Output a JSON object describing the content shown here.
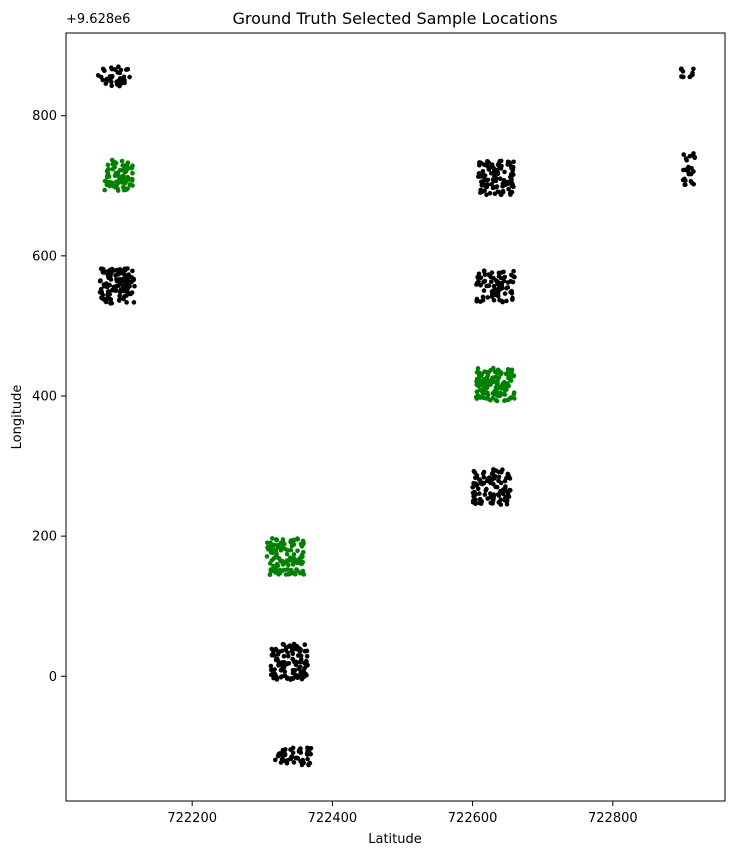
{
  "chart_data": {
    "type": "scatter",
    "title": "Ground Truth Selected Sample Locations",
    "xlabel": "Latitude",
    "ylabel": "Longitude",
    "offset_label": "+9.628e6",
    "xlim": [
      722020,
      722960
    ],
    "ylim": [
      -178,
      918
    ],
    "x_ticks": [
      {
        "value": 722200,
        "label": "722200"
      },
      {
        "value": 722400,
        "label": "722400"
      },
      {
        "value": 722600,
        "label": "722600"
      },
      {
        "value": 722800,
        "label": "722800"
      }
    ],
    "y_ticks": [
      {
        "value": 0,
        "label": "0"
      },
      {
        "value": 200,
        "label": "200"
      },
      {
        "value": 400,
        "label": "400"
      },
      {
        "value": 600,
        "label": "600"
      },
      {
        "value": 800,
        "label": "800"
      }
    ],
    "grid": false,
    "legend": "none",
    "series": [
      {
        "color": "#000000",
        "clusters": [
          {
            "x": [
              722065,
              722112
            ],
            "y": [
              842,
              870
            ],
            "count": 40
          },
          {
            "x": [
              722068,
              722118
            ],
            "y": [
              532,
              582
            ],
            "count": 120
          },
          {
            "x": [
              722312,
              722365
            ],
            "y": [
              -5,
              47
            ],
            "count": 110
          },
          {
            "x": [
              722318,
              722370
            ],
            "y": [
              -127,
              -102
            ],
            "count": 55
          },
          {
            "x": [
              722600,
              722655
            ],
            "y": [
              245,
              297
            ],
            "count": 100
          },
          {
            "x": [
              722605,
              722660
            ],
            "y": [
              533,
              580
            ],
            "count": 80
          },
          {
            "x": [
              722608,
              722660
            ],
            "y": [
              687,
              737
            ],
            "count": 110
          },
          {
            "x": [
              722897,
              722917
            ],
            "y": [
              855,
              870
            ],
            "count": 12
          },
          {
            "x": [
              722900,
              722918
            ],
            "y": [
              700,
              747
            ],
            "count": 25
          }
        ]
      },
      {
        "color": "#008000",
        "clusters": [
          {
            "x": [
              722075,
              722115
            ],
            "y": [
              693,
              737
            ],
            "count": 90
          },
          {
            "x": [
              722305,
              722360
            ],
            "y": [
              145,
              197
            ],
            "count": 130
          },
          {
            "x": [
              722605,
              722660
            ],
            "y": [
              392,
              440
            ],
            "count": 140
          }
        ]
      }
    ]
  }
}
